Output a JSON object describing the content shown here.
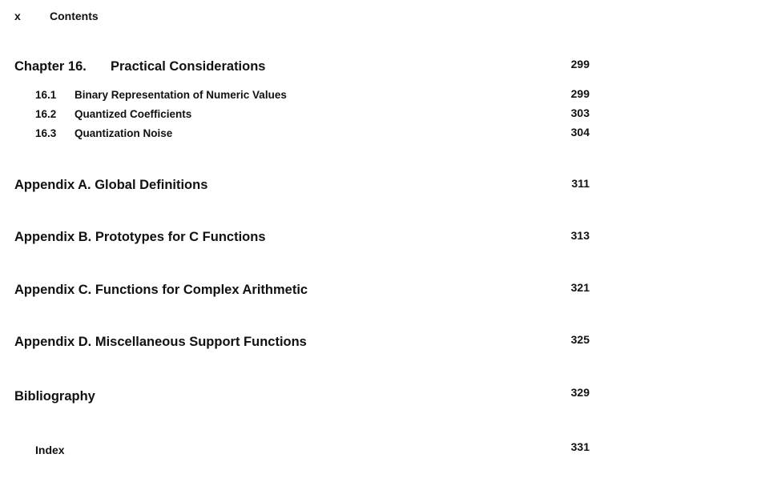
{
  "header": {
    "page_numeral": "x",
    "running_title": "Contents"
  },
  "chapter": {
    "label": "Chapter 16.",
    "title": "Practical Considerations",
    "page": "299"
  },
  "sections": [
    {
      "number": "16.1",
      "title": "Binary Representation of Numeric Values",
      "page": "299"
    },
    {
      "number": "16.2",
      "title": "Quantized Coefficients",
      "page": "303"
    },
    {
      "number": "16.3",
      "title": "Quantization Noise",
      "page": "304"
    }
  ],
  "appendices": [
    {
      "title": "Appendix A.  Global Definitions",
      "page": "311"
    },
    {
      "title": "Appendix B.  Prototypes for C Functions",
      "page": "313"
    },
    {
      "title": "Appendix C.  Functions for Complex Arithmetic",
      "page": "321"
    },
    {
      "title": "Appendix D.  Miscellaneous Support Functions",
      "page": "325"
    }
  ],
  "bibliography": {
    "title": "Bibliography",
    "page": "329"
  },
  "index": {
    "title": "Index",
    "page": "331"
  }
}
